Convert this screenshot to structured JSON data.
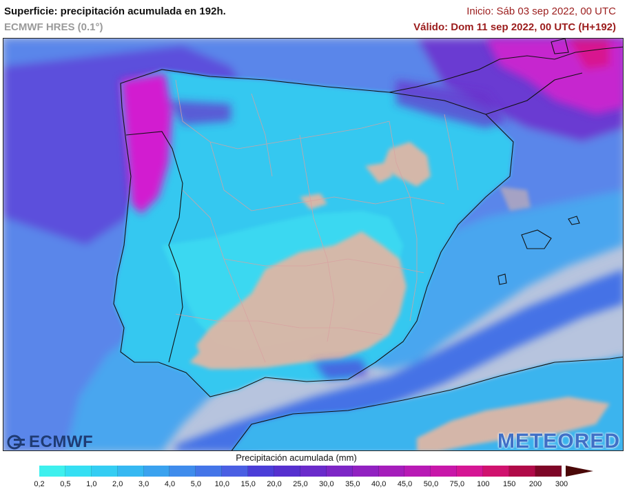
{
  "header": {
    "title": "Superficie: precipitación acumulada en 192h.",
    "subtitle": "ECMWF HRES (0.1°)",
    "init": "Inicio: Sáb 03 sep 2022, 00 UTC",
    "valid": "Válido: Dom 11 sep 2022, 00 UTC (H+192)"
  },
  "logos": {
    "left": "ECMWF",
    "right": "METEORED"
  },
  "legend": {
    "title": "Precipitación acumulada (mm)",
    "ticks": [
      "0,2",
      "0,5",
      "1,0",
      "2,0",
      "3,0",
      "4,0",
      "5,0",
      "10,0",
      "15,0",
      "20,0",
      "25,0",
      "30,0",
      "35,0",
      "40,0",
      "45,0",
      "50,0",
      "75,0",
      "100",
      "150",
      "200",
      "300"
    ],
    "colors": [
      "#3ef0ee",
      "#35dff3",
      "#34cdf3",
      "#36b8f2",
      "#3aa2ef",
      "#3f8cec",
      "#4475e8",
      "#4a5fe3",
      "#4b3ed8",
      "#5630cf",
      "#6a2bcb",
      "#7d26c6",
      "#9121c1",
      "#a51dbb",
      "#b81ab5",
      "#c817a9",
      "#d51694",
      "#d0126e",
      "#b00a48",
      "#7e0627"
    ],
    "over_color": "#4a0808"
  },
  "map": {
    "sea_color": "#b7c4de",
    "wet_color": "#3fc7f0",
    "dry_color": "#ddb7a6",
    "heavy_color": "#d21fd0"
  }
}
